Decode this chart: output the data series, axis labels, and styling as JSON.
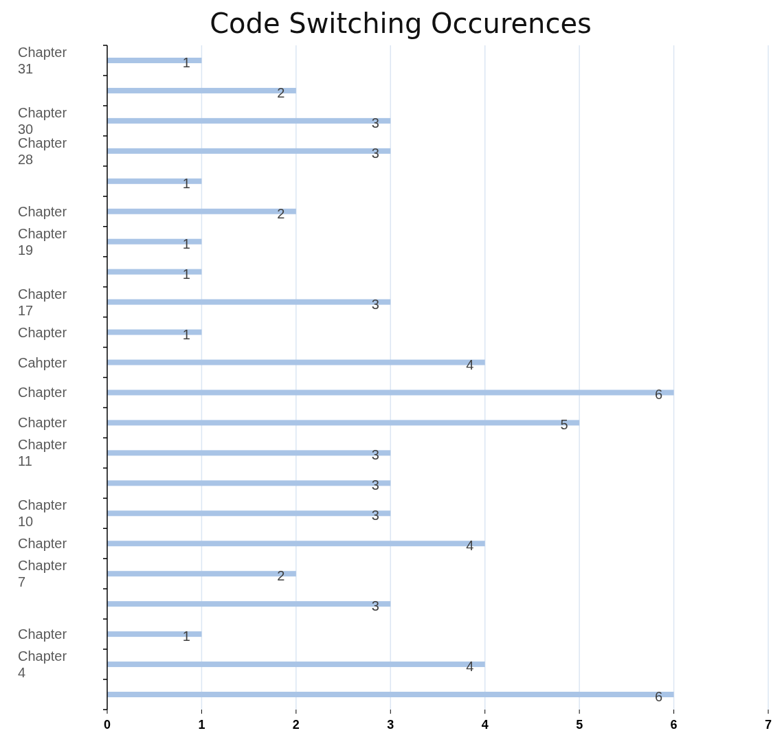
{
  "chart_data": {
    "type": "bar",
    "orientation": "horizontal",
    "title": "Code Switching Occurences",
    "categories": [
      "Chapter 31",
      null,
      "Chapter 30",
      "Chapter 28",
      null,
      "Chapter",
      "Chapter 19",
      null,
      "Chapter 17",
      "Chapter",
      "Cahpter",
      "Chapter",
      "Chapter",
      "Chapter 11",
      null,
      "Chapter 10",
      "Chapter",
      "Chapter 7",
      null,
      "Chapter",
      "Chapter 4",
      null
    ],
    "values": [
      1,
      2,
      3,
      3,
      1,
      2,
      1,
      1,
      3,
      1,
      4,
      6,
      5,
      3,
      3,
      3,
      4,
      2,
      3,
      1,
      4,
      6
    ],
    "color": "#a9c4e6",
    "xlim": [
      0,
      7
    ],
    "xticks": [
      0,
      1,
      2,
      3,
      4,
      5,
      6,
      7
    ],
    "grid": "x",
    "data_labels": true
  }
}
